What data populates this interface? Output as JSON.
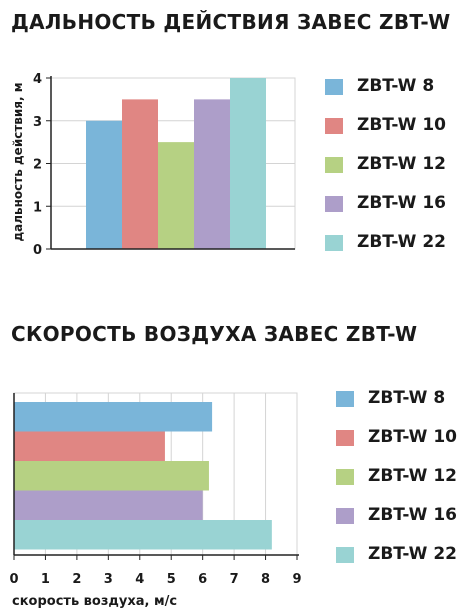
{
  "chart_data": [
    {
      "type": "bar",
      "orientation": "vertical",
      "title": "ДАЛЬНОСТЬ ДЕЙСТВИЯ ЗАВЕС ZBT-W",
      "ylabel": "дальность действия, м",
      "xlabel": "",
      "ylim": [
        0,
        4
      ],
      "yticks": [
        0,
        1,
        2,
        3,
        4
      ],
      "grid": true,
      "legend_position": "right",
      "categories": [
        "ZBT-W 8",
        "ZBT-W 10",
        "ZBT-W 12",
        "ZBT-W 16",
        "ZBT-W 22"
      ],
      "values": [
        3,
        3.5,
        2.5,
        3.5,
        4
      ],
      "colors": [
        "#7ab5d9",
        "#e08683",
        "#b6d183",
        "#ad9ec9",
        "#99d3d3"
      ]
    },
    {
      "type": "bar",
      "orientation": "horizontal",
      "title": "СКОРОСТЬ ВОЗДУХА ЗАВЕС ZBT-W",
      "xlabel": "скорость воздуха, м/с",
      "ylabel": "",
      "xlim": [
        0,
        9
      ],
      "xticks": [
        0,
        1,
        2,
        3,
        4,
        5,
        6,
        7,
        8,
        9
      ],
      "grid": true,
      "legend_position": "right",
      "categories": [
        "ZBT-W 8",
        "ZBT-W 10",
        "ZBT-W 12",
        "ZBT-W 16",
        "ZBT-W 22"
      ],
      "values": [
        6.3,
        4.8,
        6.2,
        6.0,
        8.2
      ],
      "colors": [
        "#7ab5d9",
        "#e08683",
        "#b6d183",
        "#ad9ec9",
        "#99d3d3"
      ]
    }
  ]
}
